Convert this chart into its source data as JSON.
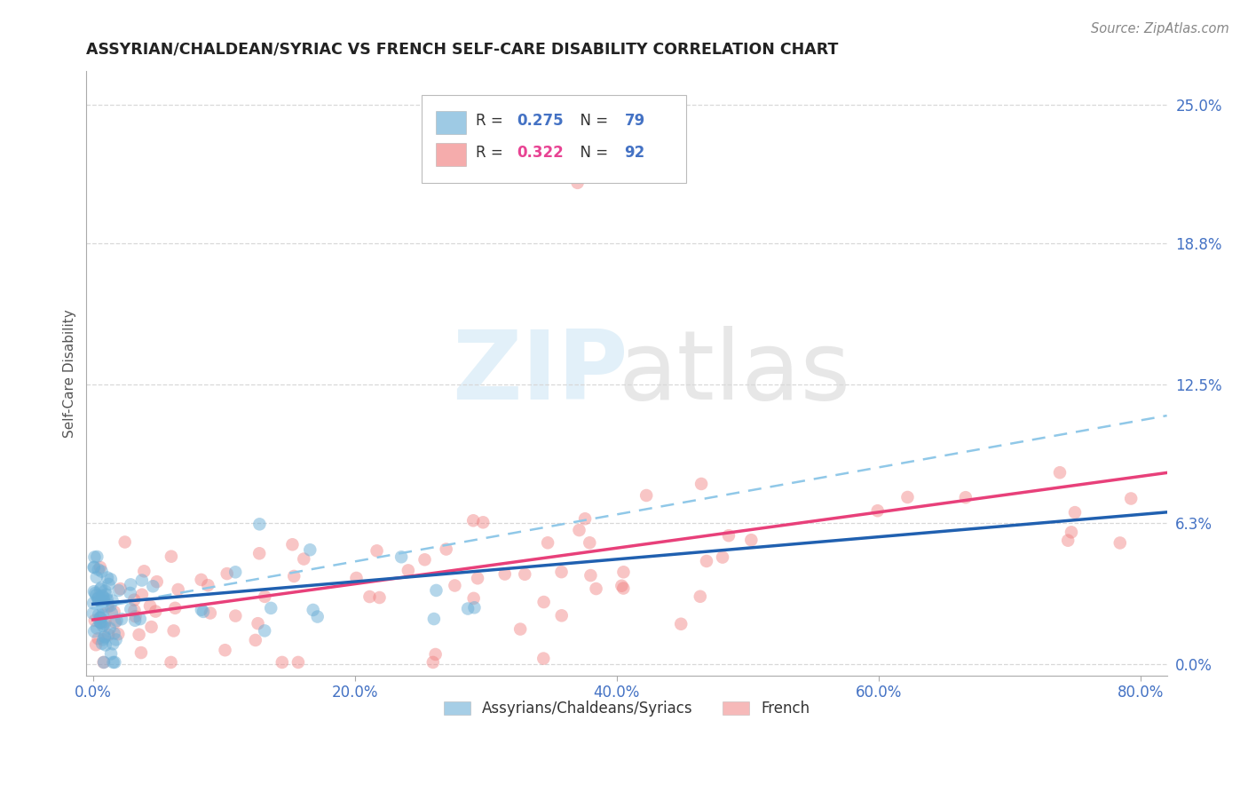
{
  "title": "ASSYRIAN/CHALDEAN/SYRIAC VS FRENCH SELF-CARE DISABILITY CORRELATION CHART",
  "source": "Source: ZipAtlas.com",
  "ylabel": "Self-Care Disability",
  "legend_label_blue": "Assyrians/Chaldeans/Syriacs",
  "legend_label_pink": "French",
  "R_blue": 0.275,
  "N_blue": 79,
  "R_pink": 0.322,
  "N_pink": 92,
  "xlim": [
    -0.005,
    0.82
  ],
  "ylim": [
    -0.005,
    0.265
  ],
  "color_blue": "#6baed6",
  "color_pink": "#f08080",
  "color_blue_line": "#2060b0",
  "color_pink_line": "#e8407a",
  "color_blue_dashed": "#90c8e8",
  "background": "#ffffff",
  "grid_color": "#d8d8d8",
  "y_ticks_right": [
    0.0,
    0.063,
    0.125,
    0.188,
    0.25
  ],
  "y_tick_labels_right": [
    "0.0%",
    "6.3%",
    "12.5%",
    "18.8%",
    "25.0%"
  ],
  "x_ticks": [
    0.0,
    0.2,
    0.4,
    0.6,
    0.8
  ],
  "x_tick_labels": [
    "0.0%",
    "20.0%",
    "40.0%",
    "60.0%",
    "80.0%"
  ]
}
